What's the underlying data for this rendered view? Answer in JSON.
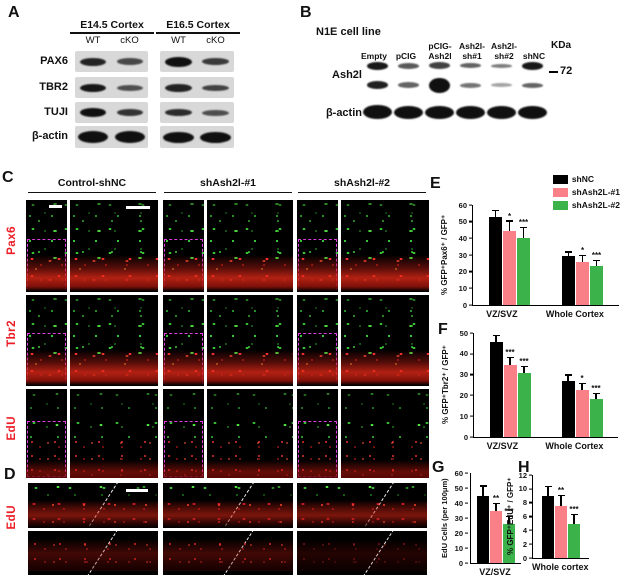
{
  "panelA": {
    "label": "A",
    "groups": [
      {
        "title": "E14.5 Cortex",
        "lanes": [
          "WT",
          "cKO"
        ]
      },
      {
        "title": "E16.5 Cortex",
        "lanes": [
          "WT",
          "cKO"
        ]
      }
    ],
    "rows": [
      {
        "label": "PAX6",
        "e14": [
          [
            0.85,
            1.0
          ],
          [
            0.6,
            0.85
          ]
        ],
        "e16": [
          [
            1.0,
            1.2
          ],
          [
            0.7,
            0.9
          ]
        ]
      },
      {
        "label": "TBR2",
        "e14": [
          [
            0.95,
            1.05
          ],
          [
            0.55,
            0.75
          ]
        ],
        "e16": [
          [
            0.85,
            0.95
          ],
          [
            0.65,
            0.8
          ]
        ]
      },
      {
        "label": "TUJI",
        "e14": [
          [
            1.0,
            1.1
          ],
          [
            0.75,
            0.85
          ]
        ],
        "e16": [
          [
            0.8,
            0.85
          ],
          [
            0.55,
            0.7
          ]
        ]
      },
      {
        "label": "β-actin",
        "e14": [
          [
            1.0,
            1.45
          ],
          [
            1.0,
            1.45
          ]
        ],
        "e16": [
          [
            1.0,
            1.4
          ],
          [
            1.0,
            1.4
          ]
        ]
      }
    ]
  },
  "panelB": {
    "label": "B",
    "title": "N1E cell line",
    "kda_label": "KDa",
    "marker_value": "72",
    "lanes": [
      {
        "t": "Empty"
      },
      {
        "t": "pCIG"
      },
      {
        "t": "pCIG-",
        "b": "Ash2l"
      },
      {
        "t": "Ash2l-",
        "b": "sh#1"
      },
      {
        "t": "Ash2l-",
        "b": "sh#2"
      },
      {
        "t": "shNC"
      }
    ],
    "rows": [
      {
        "label": "Ash2l",
        "upper": [
          [
            0.95,
            1.0
          ],
          [
            0.55,
            0.7
          ],
          [
            0.7,
            0.85
          ],
          [
            0.5,
            0.65
          ],
          [
            0.35,
            0.55
          ],
          [
            0.95,
            1.0
          ]
        ],
        "lower": [
          [
            0.9,
            0.95
          ],
          [
            0.5,
            0.7
          ],
          [
            1.0,
            1.9
          ],
          [
            0.4,
            0.6
          ],
          [
            0.12,
            0.45
          ],
          [
            0.5,
            0.6
          ]
        ]
      },
      {
        "label": "β-actin",
        "bands": [
          [
            1.0,
            1.7
          ],
          [
            1.0,
            1.6
          ],
          [
            1.0,
            1.65
          ],
          [
            1.0,
            1.6
          ],
          [
            1.0,
            1.6
          ],
          [
            1.0,
            1.65
          ]
        ]
      }
    ]
  },
  "panelC": {
    "label": "C",
    "columns": [
      "Control-shNC",
      "shAsh2l-#1",
      "shAsh2l-#2"
    ],
    "rows": [
      "Pax6",
      "Tbr2",
      "EdU"
    ]
  },
  "panelD": {
    "label": "D",
    "row_label": "EdU"
  },
  "legend": {
    "items": [
      {
        "label": "shNC",
        "color": "#000000"
      },
      {
        "label": "shAsh2L-#1",
        "color": "#F98087"
      },
      {
        "label": "shAsh2L-#2",
        "color": "#3BB24A"
      }
    ]
  },
  "chart_data": [
    {
      "panel": "E",
      "type": "bar",
      "categories": [
        "VZ/SVZ",
        "Whole Cortex"
      ],
      "series": [
        {
          "name": "shNC",
          "color": "#000000",
          "values": [
            53,
            29.5
          ],
          "errors": [
            3.5,
            2
          ]
        },
        {
          "name": "shAsh2L-#1",
          "color": "#F98087",
          "values": [
            44.5,
            26
          ],
          "errors": [
            5.5,
            3.5
          ],
          "sig": [
            "*",
            "*"
          ]
        },
        {
          "name": "shAsh2L-#2",
          "color": "#3BB24A",
          "values": [
            40,
            23.5
          ],
          "errors": [
            6,
            3
          ],
          "sig": [
            "***",
            "***"
          ]
        }
      ],
      "ylabel": "% GFP⁺Pax6⁺ / GFP⁺",
      "xlabel": "",
      "ylim": [
        0,
        60
      ],
      "ytick": 10,
      "grid": false,
      "legend_position": "top-right"
    },
    {
      "panel": "F",
      "type": "bar",
      "categories": [
        "VZ/SVZ",
        "Whole Cortex"
      ],
      "series": [
        {
          "name": "shNC",
          "color": "#000000",
          "values": [
            45.5,
            27
          ],
          "errors": [
            3,
            2.5
          ]
        },
        {
          "name": "shAsh2L-#1",
          "color": "#F98087",
          "values": [
            34.5,
            22.5
          ],
          "errors": [
            3.5,
            3
          ],
          "sig": [
            "***",
            "*"
          ]
        },
        {
          "name": "shAsh2L-#2",
          "color": "#3BB24A",
          "values": [
            31,
            18.5
          ],
          "errors": [
            2.5,
            2
          ],
          "sig": [
            "***",
            "***"
          ]
        }
      ],
      "ylabel": "% GFP⁺Tbr2⁺ / GFP⁺",
      "xlabel": "",
      "ylim": [
        0,
        50
      ],
      "ytick": 10,
      "grid": false
    },
    {
      "panel": "G",
      "type": "bar",
      "categories": [
        "VZ/SVZ"
      ],
      "series": [
        {
          "name": "shNC",
          "color": "#000000",
          "values": [
            45
          ],
          "errors": [
            6
          ]
        },
        {
          "name": "shAsh2L-#1",
          "color": "#F98087",
          "values": [
            34.5
          ],
          "errors": [
            5
          ],
          "sig": [
            "**"
          ]
        },
        {
          "name": "shAsh2L-#2",
          "color": "#3BB24A",
          "values": [
            26
          ],
          "errors": [
            4.5
          ],
          "sig": [
            "***"
          ]
        }
      ],
      "ylabel": "EdU Cells (per 100μm)",
      "xlabel": "",
      "ylim": [
        0,
        60
      ],
      "ytick": 10,
      "grid": false
    },
    {
      "panel": "H",
      "type": "bar",
      "categories": [
        "Whole cortex"
      ],
      "series": [
        {
          "name": "shNC",
          "color": "#000000",
          "values": [
            9
          ],
          "errors": [
            1.2
          ]
        },
        {
          "name": "shAsh2L-#1",
          "color": "#F98087",
          "values": [
            7.5
          ],
          "errors": [
            1.4
          ],
          "sig": [
            "**"
          ]
        },
        {
          "name": "shAsh2L-#2",
          "color": "#3BB24A",
          "values": [
            4.9
          ],
          "errors": [
            1.3
          ],
          "sig": [
            "***"
          ]
        }
      ],
      "ylabel": "% GFP⁺EdU⁺ / GFP⁺",
      "xlabel": "",
      "ylim": [
        0,
        12
      ],
      "ytick": 2,
      "grid": false
    }
  ]
}
